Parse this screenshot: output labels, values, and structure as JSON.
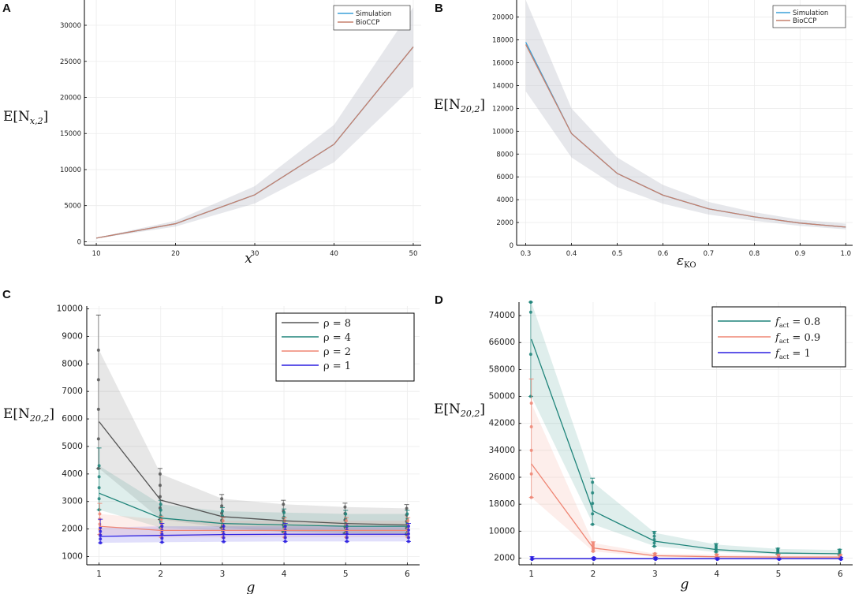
{
  "chart_data": [
    {
      "panel": "A",
      "type": "line",
      "x": [
        10,
        20,
        30,
        40,
        50
      ],
      "series": [
        {
          "name": "Simulation",
          "color": "#3ba0d8",
          "values": [
            500,
            2500,
            6500,
            13500,
            27000
          ]
        },
        {
          "name": "BioCCP",
          "color": "#c6806d",
          "values": [
            500,
            2500,
            6500,
            13500,
            27000
          ]
        }
      ],
      "band": {
        "color": "#b7bac5",
        "lower": [
          450,
          2100,
          5300,
          11000,
          21500
        ],
        "upper": [
          550,
          2900,
          7700,
          16200,
          32500
        ]
      },
      "xlabel": "x",
      "ylabel": "E[N_{x,2}]",
      "xlim": [
        8.5,
        51
      ],
      "ylim": [
        -500,
        33500
      ],
      "xticks": [
        "10",
        "20",
        "30",
        "40",
        "50"
      ],
      "yticks": [
        "0",
        "5000",
        "10000",
        "15000",
        "20000",
        "25000",
        "30000"
      ],
      "legend": [
        "Simulation",
        "BioCCP"
      ]
    },
    {
      "panel": "B",
      "type": "line",
      "x": [
        0.3,
        0.4,
        0.5,
        0.6,
        0.7,
        0.8,
        0.9,
        1.0
      ],
      "series": [
        {
          "name": "Simulation",
          "color": "#3ba0d8",
          "values": [
            17800,
            9800,
            6300,
            4400,
            3200,
            2500,
            1950,
            1600
          ]
        },
        {
          "name": "BioCCP",
          "color": "#c6806d",
          "values": [
            17600,
            9800,
            6300,
            4400,
            3200,
            2500,
            1950,
            1600
          ]
        }
      ],
      "band": {
        "color": "#b7bac5",
        "lower": [
          13500,
          7700,
          5100,
          3650,
          2700,
          2150,
          1700,
          1400
        ],
        "upper": [
          22000,
          12000,
          7700,
          5300,
          3800,
          2900,
          2250,
          1900
        ]
      },
      "xlabel": "ε_KO",
      "ylabel": "E[N_{20,2}]",
      "xlim": [
        0.28,
        1.015
      ],
      "ylim": [
        0,
        21500
      ],
      "xticks": [
        "0.3",
        "0.4",
        "0.5",
        "0.6",
        "0.7",
        "0.8",
        "0.9",
        "1.0"
      ],
      "yticks": [
        "0",
        "2000",
        "4000",
        "6000",
        "8000",
        "10000",
        "12000",
        "14000",
        "16000",
        "18000",
        "20000"
      ],
      "legend": [
        "Simulation",
        "BioCCP"
      ]
    },
    {
      "panel": "C",
      "type": "line",
      "x": [
        1,
        2,
        3,
        4,
        5,
        6
      ],
      "series": [
        {
          "name": "ρ = 8",
          "color": "#555555",
          "values": [
            5900,
            3050,
            2450,
            2300,
            2200,
            2150
          ],
          "lower": [
            4200,
            2350,
            2050,
            1900,
            1850,
            1800
          ],
          "upper": [
            8500,
            4000,
            3100,
            2900,
            2800,
            2750
          ]
        },
        {
          "name": "ρ = 4",
          "color": "#1f847a",
          "values": [
            3300,
            2400,
            2200,
            2150,
            2100,
            2100
          ],
          "lower": [
            2700,
            2050,
            1950,
            1900,
            1850,
            1850
          ],
          "upper": [
            4300,
            2900,
            2650,
            2600,
            2550,
            2550
          ]
        },
        {
          "name": "ρ = 2",
          "color": "#ef8573",
          "values": [
            2100,
            1950,
            1950,
            1950,
            1950,
            1950
          ],
          "lower": [
            1800,
            1700,
            1700,
            1700,
            1700,
            1700
          ],
          "upper": [
            2550,
            2350,
            2300,
            2300,
            2300,
            2300
          ]
        },
        {
          "name": "ρ = 1",
          "color": "#2c1fe0",
          "values": [
            1730,
            1770,
            1800,
            1810,
            1810,
            1810
          ],
          "lower": [
            1500,
            1520,
            1540,
            1550,
            1550,
            1550
          ],
          "upper": [
            2050,
            2100,
            2100,
            2100,
            2100,
            2100
          ]
        }
      ],
      "xlabel": "g",
      "ylabel": "E[N_{20,2}]",
      "xlim": [
        0.8,
        6.2
      ],
      "ylim": [
        700,
        10100
      ],
      "xticks": [
        "1",
        "2",
        "3",
        "4",
        "5",
        "6"
      ],
      "yticks": [
        "1000",
        "2000",
        "3000",
        "4000",
        "5000",
        "6000",
        "7000",
        "8000",
        "9000",
        "10000"
      ],
      "legend": [
        "ρ = 8",
        "ρ = 4",
        "ρ = 2",
        "ρ = 1"
      ]
    },
    {
      "panel": "D",
      "type": "line",
      "x": [
        1,
        2,
        3,
        4,
        5,
        6
      ],
      "series": [
        {
          "name": "f_act = 0.8",
          "color": "#1f847a",
          "values": [
            67000,
            16000,
            7000,
            4500,
            3500,
            3300
          ],
          "lower": [
            50000,
            12000,
            5500,
            3800,
            3100,
            2900
          ],
          "upper": [
            100000,
            24500,
            9500,
            6000,
            4700,
            4400
          ]
        },
        {
          "name": "f_act = 0.9",
          "color": "#ef8573",
          "values": [
            30000,
            5000,
            2700,
            2400,
            2300,
            2300
          ],
          "lower": [
            20000,
            4000,
            2300,
            2100,
            2000,
            2000
          ],
          "upper": [
            48000,
            6500,
            3300,
            3000,
            2900,
            2900
          ]
        },
        {
          "name": "f_act = 1",
          "color": "#2c1fe0",
          "values": [
            1800,
            1800,
            1800,
            1800,
            1800,
            1800
          ],
          "lower": [
            1600,
            1600,
            1600,
            1600,
            1600,
            1600
          ],
          "upper": [
            2100,
            2100,
            2100,
            2100,
            2100,
            2100
          ]
        }
      ],
      "xlabel": "g",
      "ylabel": "E[N_{20,2}]",
      "xlim": [
        0.8,
        6.2
      ],
      "ylim": [
        0,
        78000
      ],
      "xticks": [
        "1",
        "2",
        "3",
        "4",
        "5",
        "6"
      ],
      "yticks": [
        "2000",
        "10000",
        "18000",
        "26000",
        "34000",
        "42000",
        "50000",
        "58000",
        "66000",
        "74000"
      ],
      "legend": [
        "f_act = 0.8",
        "f_act = 0.9",
        "f_act = 1"
      ]
    }
  ],
  "labels": {
    "panel_a": "A",
    "panel_b": "B",
    "panel_c": "C",
    "panel_d": "D",
    "a_ylabel": "E[N",
    "a_ysub": "x,2",
    "a_xlabel": "x",
    "b_ylabel": "E[N",
    "b_ysub": "20,2",
    "b_xlabel": "ε",
    "b_xsub": "KO",
    "c_ylabel": "E[N",
    "c_ysub": "20,2",
    "c_xlabel": "g",
    "d_ylabel": "E[N",
    "d_ysub": "20,2",
    "d_xlabel": "g",
    "legend_simulation": "Simulation",
    "legend_bioccp": "BioCCP",
    "rho_8": "ρ = 8",
    "rho_4": "ρ = 4",
    "rho_2": "ρ = 2",
    "rho_1": "ρ = 1",
    "f_sym": "f",
    "f_sub": "act",
    "f_08": " = 0.8",
    "f_09": " = 0.9",
    "f_1": " = 1"
  }
}
